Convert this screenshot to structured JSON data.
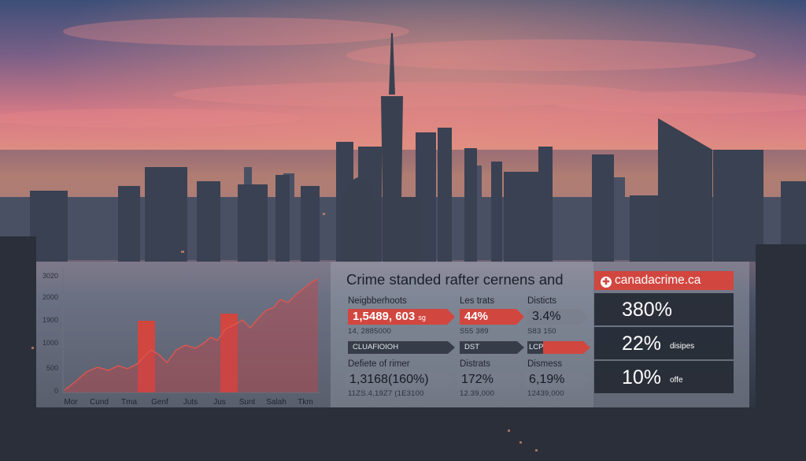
{
  "chart": {
    "y_ticks": [
      "3020",
      "2000",
      "1900",
      "1000",
      "500",
      "0"
    ],
    "x_labels": [
      "Mor",
      "Cund",
      "Tma",
      "Genf",
      "Juts",
      "Jus",
      "Sunt",
      "Salah",
      "Tkm"
    ],
    "line_color": "#e0554f",
    "bar_color": "#d1463f"
  },
  "stats": {
    "title": "Crime standed rafter cernens and",
    "row1": {
      "labels": [
        "Neigbberhoots",
        "Les trats",
        "Disticts"
      ],
      "values": [
        "1,5489, 603",
        "44%",
        "3.4%"
      ],
      "value_suffix": "sg",
      "subs": [
        "14, 2885000",
        "S55 389",
        "S83 150"
      ]
    },
    "row2": {
      "tags": [
        "CLUAFIOIOH",
        "DST",
        "LCP"
      ]
    },
    "row3": {
      "labels": [
        "Defiete of rimer",
        "Distrats",
        "Dismess"
      ],
      "values": [
        "1,3168(160%)",
        "172%",
        "6,19%"
      ],
      "subs": [
        "11ZS.4,19Z7 (1E3100",
        "12.39,000",
        "12439,000"
      ]
    }
  },
  "site": {
    "name": "canadacrime.ca",
    "rows": [
      {
        "value": "380%",
        "note": ""
      },
      {
        "value": "22%",
        "note": "disipes"
      },
      {
        "value": "10%",
        "note": "offe"
      }
    ]
  },
  "colors": {
    "accent": "#d1463f",
    "dark": "#363c48"
  }
}
